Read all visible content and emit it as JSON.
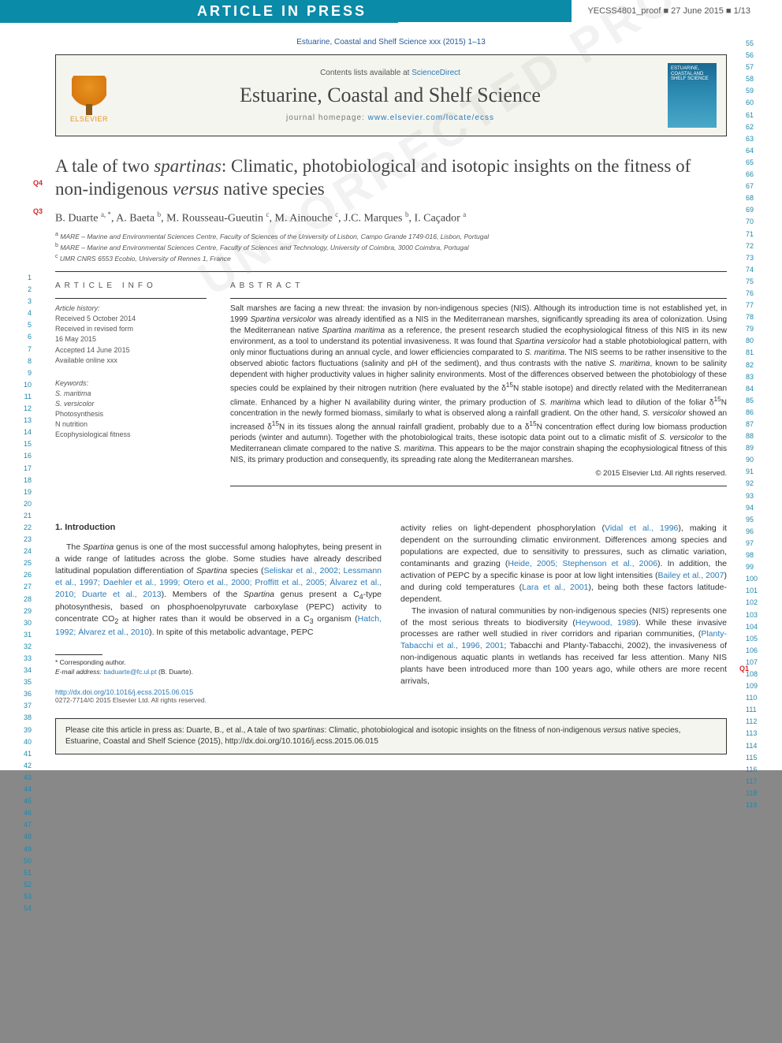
{
  "banner": {
    "label": "ARTICLE IN PRESS",
    "proof": "YECSS4801_proof ■ 27 June 2015 ■ 1/13"
  },
  "journal_cite": "Estuarine, Coastal and Shelf Science xxx (2015) 1–13",
  "header": {
    "elsevier": "ELSEVIER",
    "contents_prefix": "Contents lists available at ",
    "contents_link": "ScienceDirect",
    "journal_name": "Estuarine, Coastal and Shelf Science",
    "homepage_prefix": "journal homepage: ",
    "homepage_link": "www.elsevier.com/locate/ecss",
    "cover_title": "ESTUARINE, COASTAL AND SHELF SCIENCE"
  },
  "qlabels": {
    "q4": "Q4",
    "q3": "Q3",
    "q1": "Q1"
  },
  "title_parts": {
    "p1": "A tale of two ",
    "p2": "spartinas",
    "p3": ": Climatic, photobiological and isotopic insights on the fitness of non-indigenous ",
    "p4": "versus",
    "p5": " native species"
  },
  "authors_html": "B. Duarte <sup>a, *</sup>, A. Baeta <sup>b</sup>, M. Rousseau-Gueutin <sup>c</sup>, M. Ainouche <sup>c</sup>, J.C. Marques <sup>b</sup>, I. Caçador <sup>a</sup>",
  "affiliations": [
    "a MARE – Marine and Environmental Sciences Centre, Faculty of Sciences of the University of Lisbon, Campo Grande 1749-016, Lisbon, Portugal",
    "b MARE – Marine and Environmental Sciences Centre, Faculty of Sciences and Technology, University of Coimbra, 3000 Coimbra, Portugal",
    "c UMR CNRS 6553 Ecobio, University of Rennes 1, France"
  ],
  "info": {
    "heading": "ARTICLE INFO",
    "history_head": "Article history:",
    "history": [
      "Received 5 October 2014",
      "Received in revised form",
      "16 May 2015",
      "Accepted 14 June 2015",
      "Available online xxx"
    ],
    "keywords_head": "Keywords:",
    "keywords": [
      {
        "text": "S. maritima",
        "italic": true
      },
      {
        "text": "S. versicolor",
        "italic": true
      },
      {
        "text": "Photosynthesis",
        "italic": false
      },
      {
        "text": "N nutrition",
        "italic": false
      },
      {
        "text": "Ecophysiological fitness",
        "italic": false
      }
    ]
  },
  "abstract": {
    "heading": "ABSTRACT",
    "text": "Salt marshes are facing a new threat: the invasion by non-indigenous species (NIS). Although its introduction time is not established yet, in 1999 <i>Spartina versicolor</i> was already identified as a NIS in the Mediterranean marshes, significantly spreading its area of colonization. Using the Mediterranean native <i>Spartina maritima</i> as a reference, the present research studied the ecophysiological fitness of this NIS in its new environment, as a tool to understand its potential invasiveness. It was found that <i>Spartina versicolor</i> had a stable photobiological pattern, with only minor fluctuations during an annual cycle, and lower efficiencies comparated to <i>S. maritima</i>. The NIS seems to be rather insensitive to the observed abiotic factors fluctuations (salinity and pH of the sediment), and thus contrasts with the native <i>S. maritima</i>, known to be salinity dependent with higher productivity values in higher salinity environments. Most of the differences observed between the photobiology of these species could be explained by their nitrogen nutrition (here evaluated by the δ<sup>15</sup>N stable isotope) and directly related with the Mediterranean climate. Enhanced by a higher N availability during winter, the primary production of <i>S. maritima</i> which lead to dilution of the foliar δ<sup>15</sup>N concentration in the newly formed biomass, similarly to what is observed along a rainfall gradient. On the other hand, <i>S. versicolor</i> showed an increased δ<sup>15</sup>N in its tissues along the annual rainfall gradient, probably due to a δ<sup>15</sup>N concentration effect during low biomass production periods (winter and autumn). Together with the photobiological traits, these isotopic data point out to a climatic misfit of <i>S. versicolor</i> to the Mediterranean climate compared to the native <i>S. maritima</i>. This appears to be the major constrain shaping the ecophysiological fitness of this NIS, its primary production and consequently, its spreading rate along the Mediterranean marshes.",
    "copyright": "© 2015 Elsevier Ltd. All rights reserved."
  },
  "body": {
    "intro_heading": "1. Introduction",
    "col1_p1": "The <i>Spartina</i> genus is one of the most successful among halophytes, being present in a wide range of latitudes across the globe. Some studies have already described latitudinal population differentiation of <i>Spartina</i> species (<a>Seliskar et al., 2002; Lessmann et al., 1997; Daehler et al., 1999; Otero et al., 2000; Proffitt et al., 2005; Álvarez et al., 2010; Duarte et al., 2013</a>). Members of the <i>Spartina</i> genus present a C<sub>4</sub>-type photosynthesis, based on phosphoenolpyruvate carboxylase (PEPC) activity to concentrate CO<sub>2</sub> at higher rates than it would be observed in a C<sub>3</sub> organism (<a>Hatch, 1992; Álvarez et al., 2010</a>). In spite of this metabolic advantage, PEPC",
    "col2_p1": "activity relies on light-dependent phosphorylation (<a>Vidal et al., 1996</a>), making it dependent on the surrounding climatic environment. Differences among species and populations are expected, due to sensitivity to pressures, such as climatic variation, contaminants and grazing (<a>Heide, 2005; Stephenson et al., 2006</a>). In addition, the activation of PEPC by a specific kinase is poor at low light intensities (<a>Bailey et al., 2007</a>) and during cold temperatures (<a>Lara et al., 2001</a>), being both these factors latitude-dependent.",
    "col2_p2": "The invasion of natural communities by non-indigenous species (NIS) represents one of the most serious threats to biodiversity (<a>Heywood, 1989</a>). While these invasive processes are rather well studied in river corridors and riparian communities, (<a>Planty-Tabacchi et al., 1996, 2001</a>; Tabacchi and Planty-Tabacchi, 2002), the invasiveness of non-indigenous aquatic plants in wetlands has received far less attention. Many NIS plants have been introduced more than 100 years ago, while others are more recent arrivals,"
  },
  "footnote": {
    "corr": "* Corresponding author.",
    "email_label": "E-mail address: ",
    "email": "baduarte@fc.ul.pt",
    "email_suffix": " (B. Duarte)."
  },
  "doi": {
    "url": "http://dx.doi.org/10.1016/j.ecss.2015.06.015",
    "issn": "0272-7714/© 2015 Elsevier Ltd. All rights reserved."
  },
  "cite_box": "Please cite this article in press as: Duarte, B., et al., A tale of two <i>spartinas</i>: Climatic, photobiological and isotopic insights on the fitness of non-indigenous <i>versus</i> native species, Estuarine, Coastal and Shelf Science (2015), http://dx.doi.org/10.1016/j.ecss.2015.06.015",
  "line_numbers": {
    "left_start": 1,
    "left_end": 54,
    "right_start": 55,
    "right_end": 119
  },
  "watermark": "UNCORRECTED PROOF",
  "colors": {
    "banner_bg": "#0a8ba8",
    "link": "#2a7ab8",
    "elsevier": "#e8941f",
    "q_red": "#d8282a",
    "line_num": "#2288aa"
  }
}
